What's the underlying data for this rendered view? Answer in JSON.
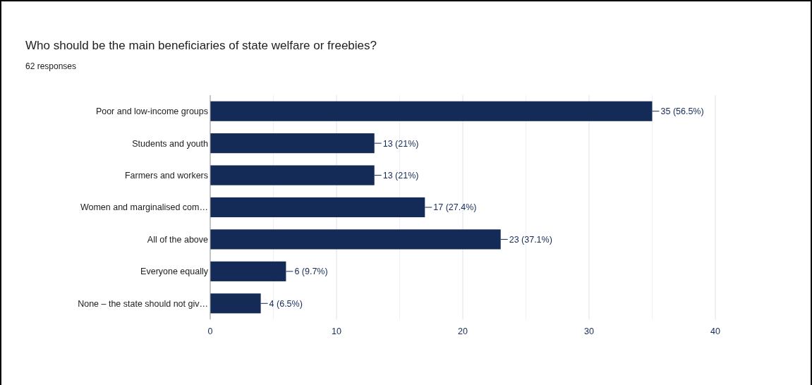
{
  "chart_data": {
    "type": "bar",
    "orientation": "horizontal",
    "title": "Who should be the main beneficiaries of state welfare or freebies?",
    "subtitle": "62 responses",
    "categories": [
      "Poor and low-income groups",
      "Students and youth",
      "Farmers and workers",
      "Women and marginalised com…",
      "All of the above",
      "Everyone equally",
      "None – the state should not giv…"
    ],
    "values": [
      35,
      13,
      13,
      17,
      23,
      6,
      4
    ],
    "value_labels": [
      "35 (56.5%)",
      "13 (21%)",
      "13 (21%)",
      "17 (27.4%)",
      "23 (37.1%)",
      "6 (9.7%)",
      "4 (6.5%)"
    ],
    "color": "#142a57",
    "xlim": [
      0,
      40
    ],
    "xticks": [
      0,
      {
        "value": 5,
        "label": null
      },
      10,
      {
        "value": 15,
        "label": null
      },
      20,
      {
        "value": 25,
        "label": null
      },
      30,
      {
        "value": 35,
        "label": null
      },
      40
    ],
    "grid": "x"
  }
}
